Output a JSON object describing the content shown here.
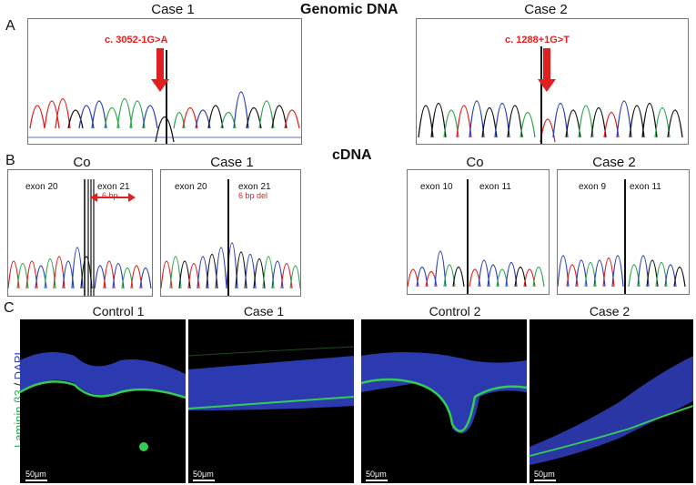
{
  "panel_a": {
    "letter": "A",
    "heading": "Genomic DNA",
    "case1_title": "Case 1",
    "case2_title": "Case 2",
    "case1_mutation": "c. 3052-1G>A",
    "case2_mutation": "c. 1288+1G>T"
  },
  "panel_b": {
    "letter": "B",
    "heading": "cDNA",
    "co1_title": "Co",
    "case1_title": "Case 1",
    "co2_title": "Co",
    "case2_title": "Case 2",
    "co1_left": "exon 20",
    "co1_right": "exon 21",
    "co1_note": "6 bp",
    "case1_left": "exon 20",
    "case1_right": "exon 21",
    "case1_note": "6 bp del",
    "co2_left": "exon 10",
    "co2_right": "exon 11",
    "case2_left": "exon 9",
    "case2_right": "exon 11"
  },
  "panel_c": {
    "letter": "C",
    "side_label_green": "Laminin β3",
    "side_label_sep": " / ",
    "side_label_blue": "DAPI",
    "titles": [
      "Control 1",
      "Case 1",
      "Control 2",
      "Case 2"
    ],
    "scale_label": "50μm"
  },
  "colors": {
    "red": "#e02020",
    "green": "#2fa84f",
    "blue": "#2b3fb8",
    "black": "#111111",
    "laminin": "#33cc55",
    "dapi": "#3344cc"
  }
}
